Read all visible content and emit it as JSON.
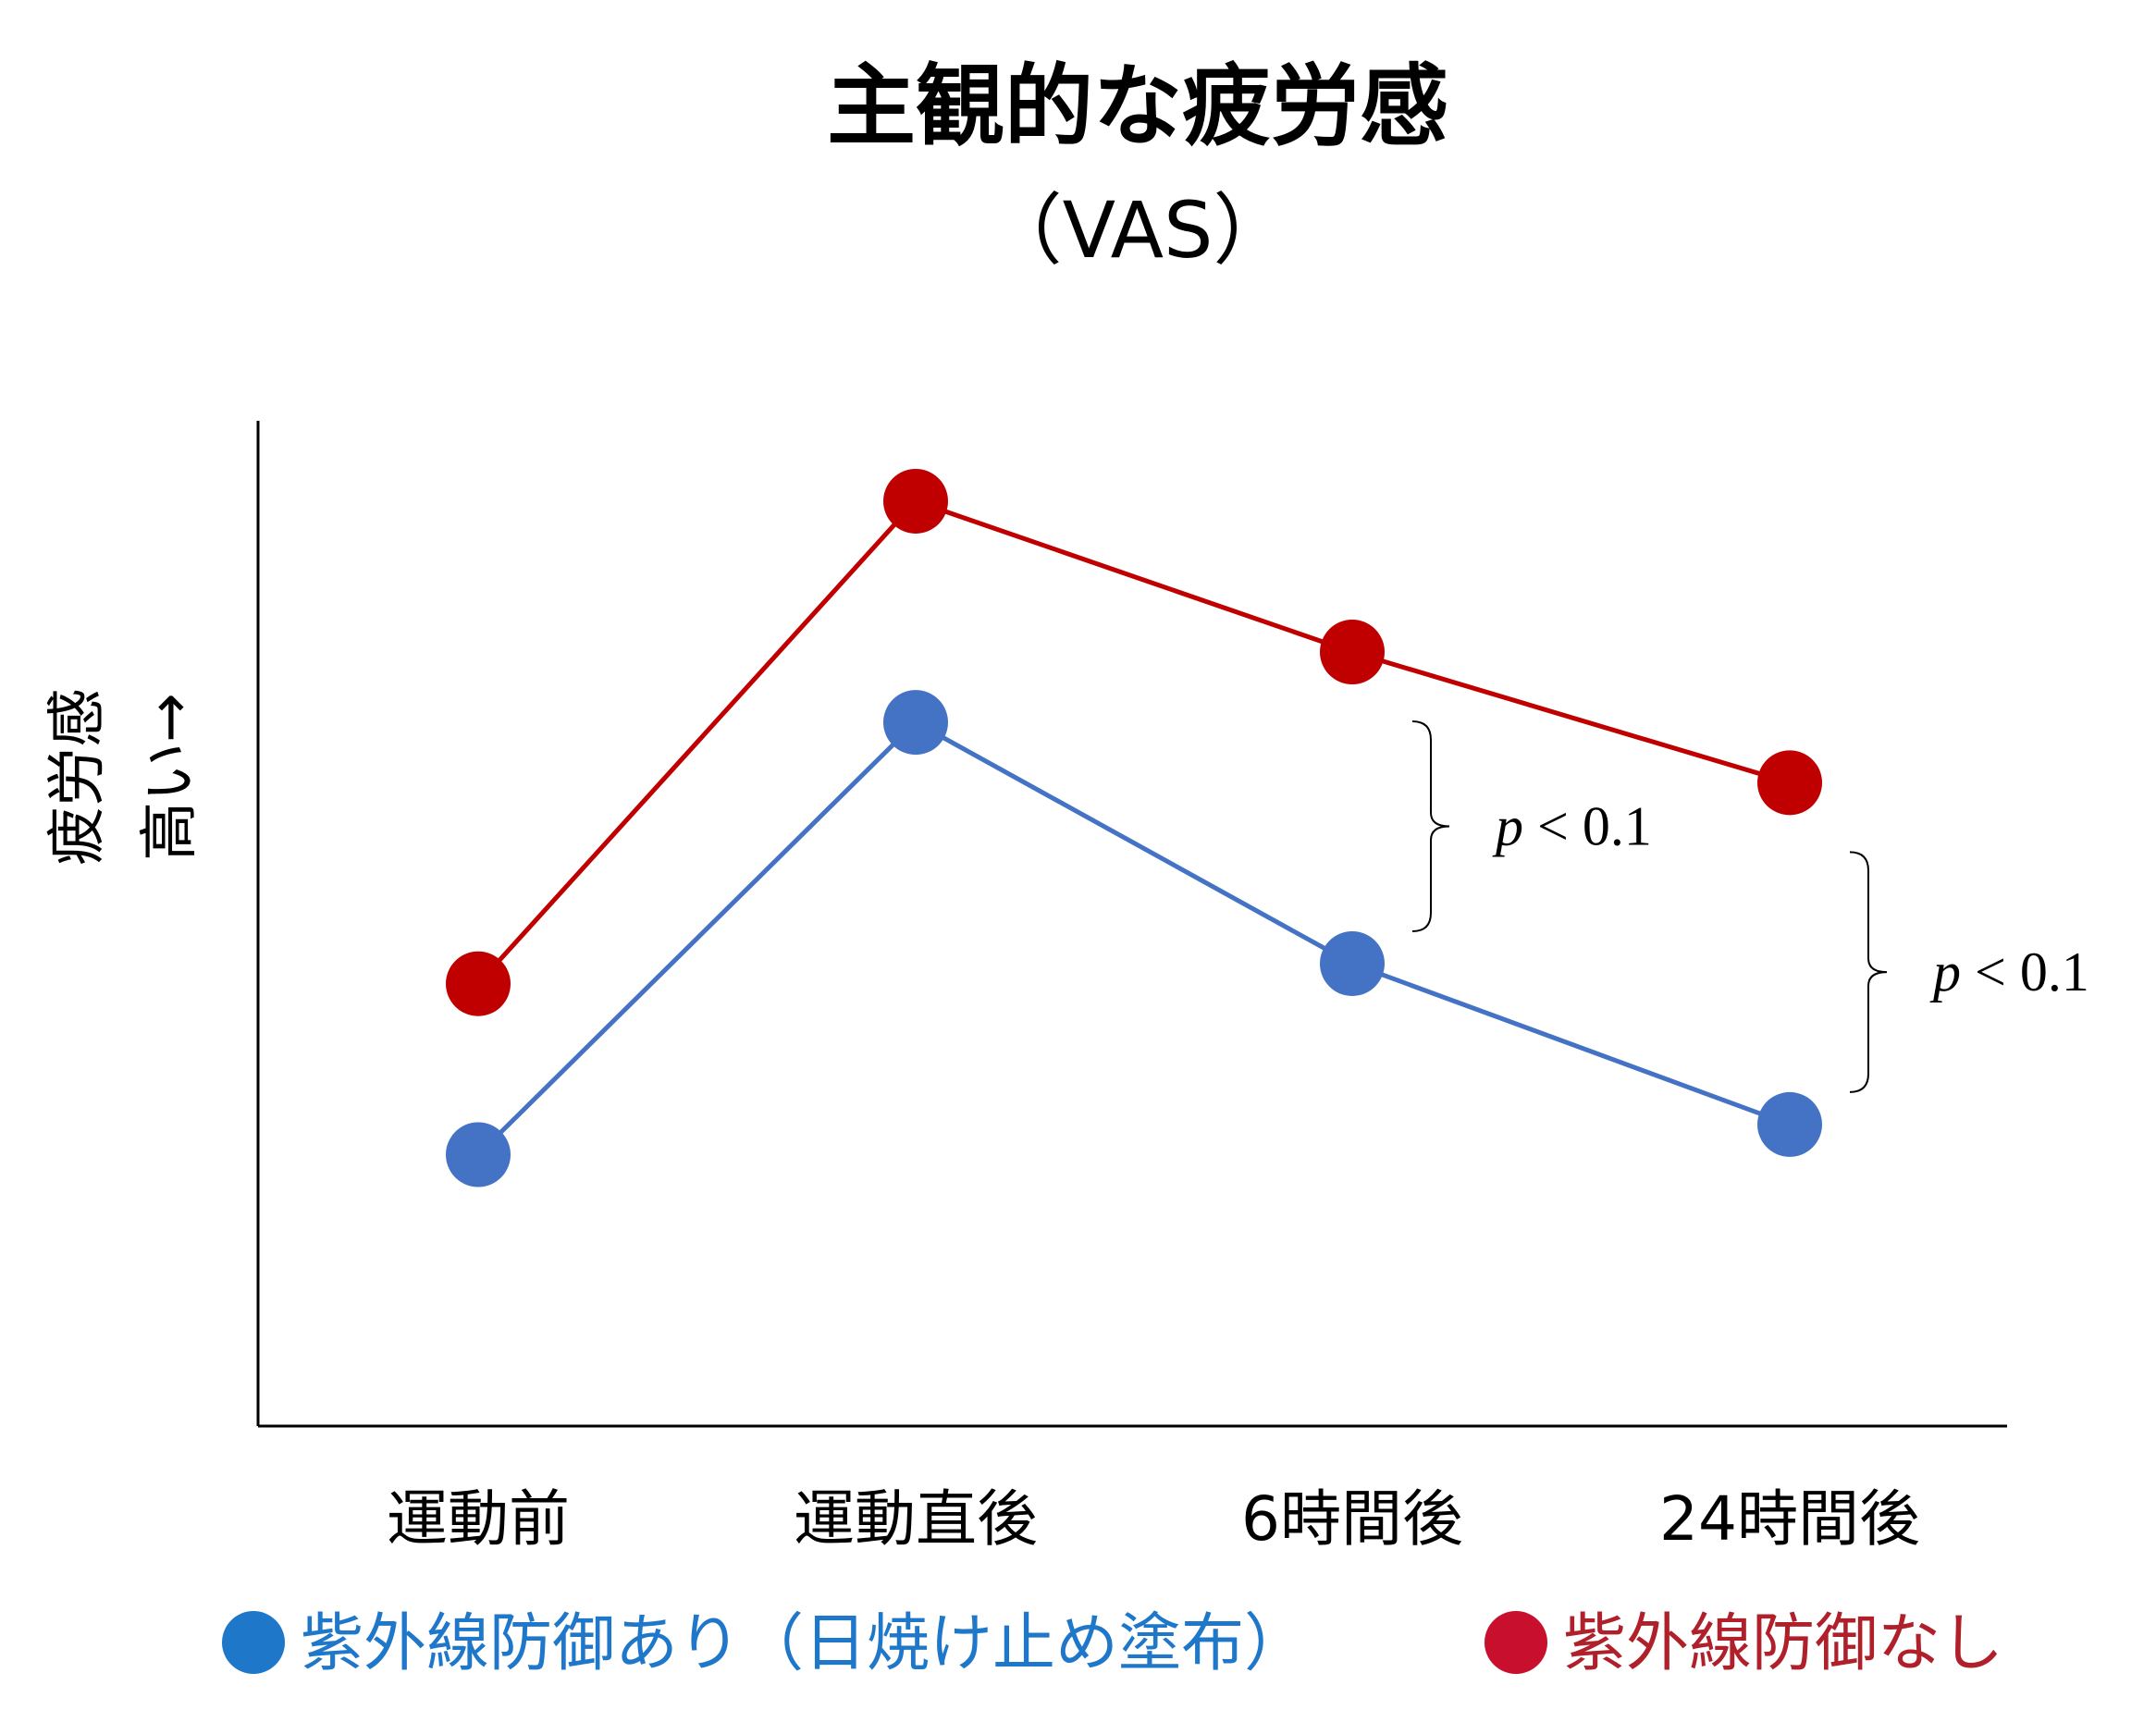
{
  "chart_data": {
    "type": "line",
    "title": "主観的な疲労感",
    "subtitle": "（VAS）",
    "ylabel_line1": "疲労感",
    "ylabel_line2": "高い→",
    "categories": [
      "運動前",
      "運動直後",
      "6時間後",
      "24時間後"
    ],
    "ylim": [
      0,
      10
    ],
    "grid": false,
    "legend_position": "bottom",
    "series": [
      {
        "name": "紫外線防御あり（日焼け止め塗布）",
        "values": [
          2.7,
          7.0,
          4.6,
          3.0
        ],
        "color": "#4472C4",
        "legend_color": "#1F77C9",
        "text_color": "#1F77C9"
      },
      {
        "name": "紫外線防御なし",
        "values": [
          4.4,
          9.2,
          7.7,
          6.4
        ],
        "color": "#C00000",
        "legend_color": "#C8102E",
        "text_color": "#B0202A"
      }
    ],
    "annotations": [
      {
        "text_p": "p",
        "text_rest": " < 0.1",
        "between_category": "6時間後"
      },
      {
        "text_p": "p",
        "text_rest": " < 0.1",
        "between_category": "24時間後"
      }
    ],
    "legend_marker": "●"
  }
}
